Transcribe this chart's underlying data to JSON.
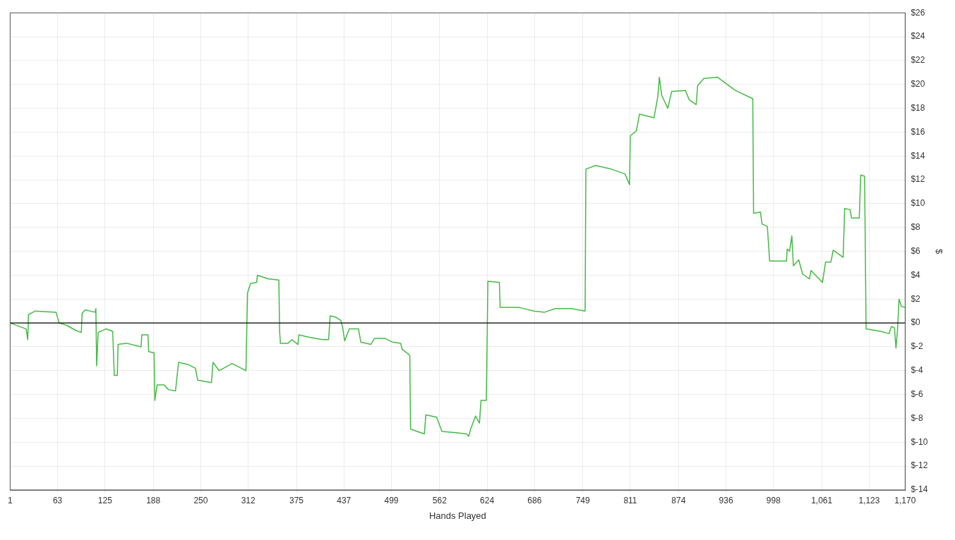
{
  "chart_data": {
    "type": "line",
    "xlabel": "Hands Played",
    "ylabel": "$",
    "xlim": [
      1,
      1170
    ],
    "ylim": [
      -14,
      26
    ],
    "xticks": [
      1,
      63,
      125,
      188,
      250,
      312,
      375,
      437,
      499,
      562,
      624,
      686,
      749,
      811,
      874,
      936,
      998,
      {
        "value": 1061,
        "label": "1,061"
      },
      {
        "value": 1123,
        "label": "1,123"
      },
      {
        "value": 1170,
        "label": "1,170"
      }
    ],
    "yticks": [
      {
        "value": -14,
        "label": "$-14"
      },
      {
        "value": -12,
        "label": "$-12"
      },
      {
        "value": -10,
        "label": "$-10"
      },
      {
        "value": -8,
        "label": "$-8"
      },
      {
        "value": -6,
        "label": "$-6"
      },
      {
        "value": -4,
        "label": "$-4"
      },
      {
        "value": -2,
        "label": "$-2"
      },
      {
        "value": 0,
        "label": "$0"
      },
      {
        "value": 2,
        "label": "$2"
      },
      {
        "value": 4,
        "label": "$4"
      },
      {
        "value": 6,
        "label": "$6"
      },
      {
        "value": 8,
        "label": "$8"
      },
      {
        "value": 10,
        "label": "$10"
      },
      {
        "value": 12,
        "label": "$12"
      },
      {
        "value": 14,
        "label": "$14"
      },
      {
        "value": 16,
        "label": "$16"
      },
      {
        "value": 18,
        "label": "$18"
      },
      {
        "value": 20,
        "label": "$20"
      },
      {
        "value": 22,
        "label": "$22"
      },
      {
        "value": 24,
        "label": "$24"
      },
      {
        "value": 26,
        "label": "$26"
      }
    ],
    "grid": true,
    "legend": false,
    "marker": "none",
    "line_style": "solid",
    "ref_lines": [
      {
        "axis": "y",
        "value": 0,
        "color": "#000000"
      }
    ],
    "series": [
      {
        "color": "#44bb44",
        "x": [
          1,
          22,
          24,
          25,
          34,
          61,
          65,
          75,
          86,
          94,
          95,
          99,
          112,
          113,
          114,
          116,
          126,
          135,
          137,
          141,
          142,
          153,
          172,
          173,
          181,
          182,
          189,
          190,
          193,
          202,
          208,
          217,
          221,
          234,
          243,
          246,
          264,
          266,
          274,
          291,
          309,
          311,
          315,
          323,
          324,
          338,
          352,
          353,
          354,
          364,
          369,
          377,
          378,
          392,
          409,
          417,
          419,
          426,
          433,
          435,
          438,
          444,
          456,
          459,
          472,
          477,
          491,
          500,
          511,
          513,
          523,
          524,
          542,
          544,
          558,
          565,
          583,
          597,
          600,
          603,
          609,
          614,
          616,
          623,
          625,
          640,
          641,
          666,
          685,
          699,
          713,
          734,
          752,
          753,
          766,
          786,
          804,
          810,
          811,
          819,
          823,
          842,
          847,
          849,
          852,
          860,
          865,
          883,
          888,
          897,
          899,
          907,
          925,
          948,
          971,
          972,
          981,
          983,
          990,
          993,
          1015,
          1016,
          1019,
          1022,
          1024,
          1031,
          1036,
          1045,
          1047,
          1062,
          1066,
          1073,
          1076,
          1089,
          1091,
          1098,
          1100,
          1110,
          1112,
          1117,
          1119,
          1138,
          1149,
          1152,
          1156,
          1158,
          1160,
          1162,
          1165,
          1170
        ],
        "values": [
          0,
          -0.5,
          -1.4,
          0.7,
          1.0,
          0.9,
          0,
          -0.2,
          -0.6,
          -0.8,
          0.8,
          1.1,
          0.9,
          1.2,
          -3.6,
          -0.8,
          -0.5,
          -0.7,
          -4.4,
          -4.4,
          -1.8,
          -1.7,
          -2.0,
          -1.0,
          -1.0,
          -2.4,
          -2.5,
          -6.5,
          -5.2,
          -5.2,
          -5.6,
          -5.7,
          -3.3,
          -3.5,
          -3.8,
          -4.8,
          -5.0,
          -3.3,
          -4.0,
          -3.4,
          -4.0,
          2.5,
          3.3,
          3.4,
          4.0,
          3.7,
          3.6,
          -0.7,
          -1.7,
          -1.7,
          -1.4,
          -1.8,
          -1.0,
          -1.2,
          -1.4,
          -1.4,
          0.6,
          0.5,
          0.2,
          -0.3,
          -1.5,
          -0.5,
          -0.5,
          -1.6,
          -1.8,
          -1.3,
          -1.3,
          -1.6,
          -1.7,
          -2.2,
          -2.7,
          -8.9,
          -9.3,
          -7.7,
          -7.9,
          -9.1,
          -9.2,
          -9.3,
          -9.5,
          -8.8,
          -7.8,
          -8.4,
          -6.5,
          -6.5,
          3.5,
          3.4,
          1.3,
          1.3,
          1.0,
          0.9,
          1.2,
          1.2,
          1.0,
          12.9,
          13.2,
          12.9,
          12.5,
          11.6,
          15.7,
          16.1,
          17.5,
          17.2,
          19.0,
          20.6,
          19.1,
          18.0,
          19.4,
          19.5,
          18.7,
          18.3,
          19.9,
          20.5,
          20.6,
          19.5,
          18.8,
          9.2,
          9.3,
          8.3,
          8.1,
          5.2,
          5.2,
          6.2,
          6.0,
          7.3,
          4.8,
          5.3,
          4.1,
          3.7,
          4.4,
          3.4,
          5.1,
          5.1,
          6.1,
          5.5,
          9.6,
          9.5,
          8.8,
          8.8,
          12.4,
          12.3,
          -0.5,
          -0.7,
          -0.9,
          -0.3,
          -0.4,
          -2.1,
          -0.6,
          2.0,
          1.4,
          1.3
        ]
      }
    ]
  }
}
